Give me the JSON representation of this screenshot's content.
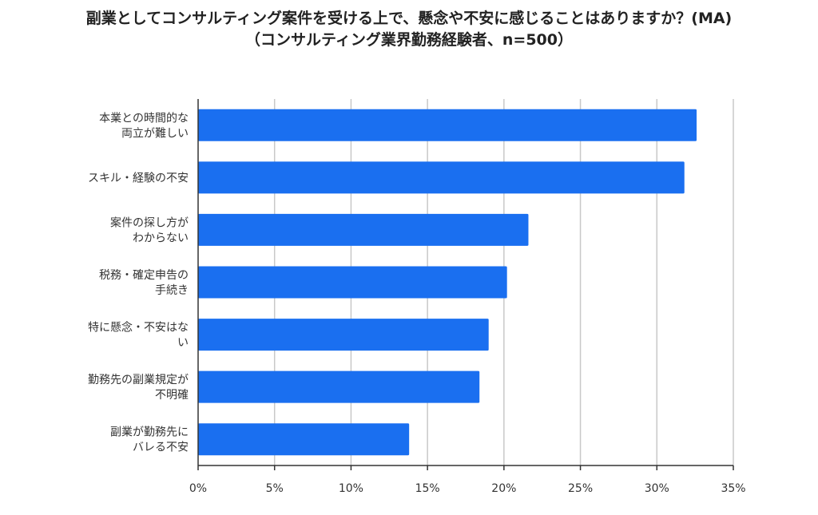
{
  "chart_data": {
    "type": "bar",
    "orientation": "horizontal",
    "title": "副業としてコンサルティング案件を受ける上で、懸念や不安に感じることはありますか？(MA)",
    "subtitle": "（コンサルティング業界勤務経験者、n=500）",
    "categories": [
      [
        "本業との時間的な",
        "両立が難しい"
      ],
      [
        "スキル・経験の不安"
      ],
      [
        "案件の探し方が",
        "わからない"
      ],
      [
        "税務・確定申告の",
        "手続き"
      ],
      [
        "特に懸念・不安はな",
        "い"
      ],
      [
        "勤務先の副業規定が",
        "不明確"
      ],
      [
        "副業が勤務先に",
        "バレる不安"
      ]
    ],
    "values": [
      32.6,
      31.8,
      21.6,
      20.2,
      19.0,
      18.4,
      13.8
    ],
    "xlim": [
      0,
      35
    ],
    "x_ticks": [
      "0%",
      "5%",
      "10%",
      "15%",
      "20%",
      "25%",
      "30%",
      "35%"
    ],
    "grid": true,
    "bar_color": "#1a6ff0"
  }
}
